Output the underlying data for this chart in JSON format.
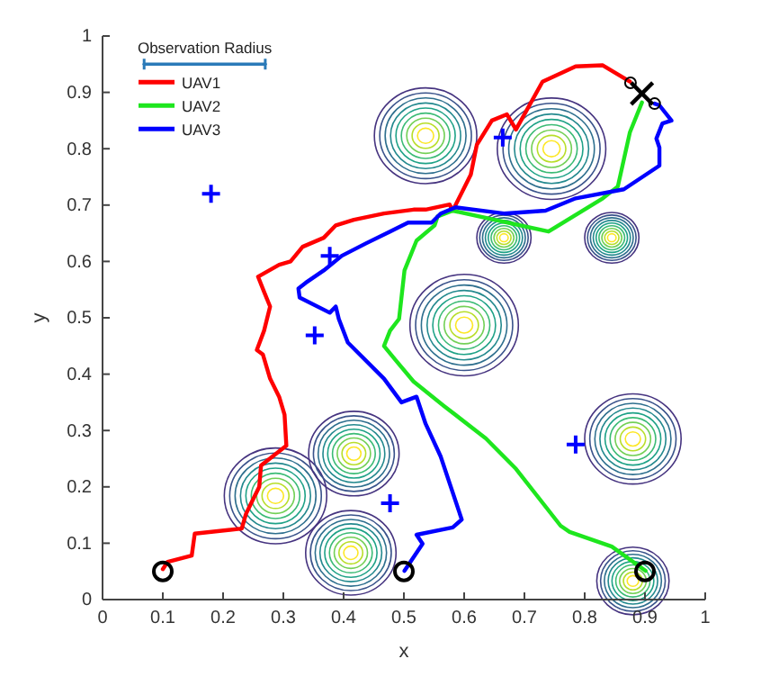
{
  "chart_data": {
    "type": "line",
    "xlabel": "x",
    "ylabel": "y",
    "xlim": [
      0,
      1
    ],
    "ylim": [
      0,
      1
    ],
    "xticks": [
      0,
      0.1,
      0.2,
      0.3,
      0.4,
      0.5,
      0.6,
      0.7,
      0.8,
      0.9,
      1
    ],
    "yticks": [
      0,
      0.1,
      0.2,
      0.3,
      0.4,
      0.5,
      0.6,
      0.7,
      0.8,
      0.9,
      1
    ],
    "grid": false,
    "legend": "top left",
    "line_style": "solid",
    "series": [
      {
        "name": "Observation Radius",
        "type": "line",
        "color": "#2a7ab8",
        "x": [
          0.069,
          0.27
        ],
        "values": [
          0.95,
          0.95
        ]
      },
      {
        "name": "UAV1",
        "color": "#ff0000",
        "x": [
          0.1,
          0.108,
          0.148,
          0.153,
          0.231,
          0.238,
          0.248,
          0.26,
          0.263,
          0.305,
          0.302,
          0.293,
          0.278,
          0.266,
          0.256,
          0.268,
          0.278,
          0.268,
          0.258,
          0.293,
          0.312,
          0.332,
          0.367,
          0.387,
          0.417,
          0.467,
          0.516,
          0.536,
          0.576,
          0.581,
          0.611,
          0.621,
          0.646,
          0.671,
          0.686,
          0.73,
          0.785,
          0.83,
          0.875
        ],
        "values": [
          0.054,
          0.067,
          0.078,
          0.117,
          0.126,
          0.152,
          0.174,
          0.2,
          0.238,
          0.273,
          0.328,
          0.36,
          0.392,
          0.435,
          0.443,
          0.477,
          0.52,
          0.546,
          0.573,
          0.594,
          0.6,
          0.626,
          0.642,
          0.664,
          0.674,
          0.685,
          0.692,
          0.692,
          0.701,
          0.69,
          0.754,
          0.807,
          0.85,
          0.861,
          0.834,
          0.919,
          0.946,
          0.948,
          0.919
        ]
      },
      {
        "name": "UAV2",
        "color": "#1ee61e",
        "x": [
          0.901,
          0.845,
          0.775,
          0.76,
          0.686,
          0.636,
          0.566,
          0.516,
          0.487,
          0.467,
          0.477,
          0.492,
          0.501,
          0.521,
          0.551,
          0.556,
          0.581,
          0.74,
          0.83,
          0.855,
          0.875,
          0.895
        ],
        "values": [
          0.051,
          0.094,
          0.12,
          0.131,
          0.232,
          0.286,
          0.344,
          0.387,
          0.424,
          0.45,
          0.477,
          0.498,
          0.584,
          0.637,
          0.664,
          0.68,
          0.69,
          0.653,
          0.712,
          0.733,
          0.829,
          0.882
        ]
      },
      {
        "name": "UAV3",
        "color": "#0000ff",
        "x": [
          0.501,
          0.531,
          0.521,
          0.581,
          0.596,
          0.561,
          0.536,
          0.521,
          0.496,
          0.467,
          0.407,
          0.392,
          0.387,
          0.377,
          0.327,
          0.325,
          0.337,
          0.367,
          0.397,
          0.437,
          0.477,
          0.507,
          0.546,
          0.561,
          0.586,
          0.666,
          0.735,
          0.785,
          0.865,
          0.924,
          0.924,
          0.919,
          0.929,
          0.944,
          0.924,
          0.916
        ],
        "values": [
          0.051,
          0.099,
          0.115,
          0.128,
          0.142,
          0.254,
          0.312,
          0.36,
          0.35,
          0.392,
          0.456,
          0.498,
          0.52,
          0.509,
          0.536,
          0.552,
          0.562,
          0.584,
          0.61,
          0.632,
          0.653,
          0.669,
          0.669,
          0.685,
          0.696,
          0.685,
          0.69,
          0.712,
          0.728,
          0.77,
          0.802,
          0.818,
          0.845,
          0.85,
          0.877,
          0.88
        ]
      },
      {
        "type": "scatter",
        "marker": "cross",
        "color": "#0000ff",
        "x": [
          0.18,
          0.377,
          0.352,
          0.477,
          0.785,
          0.664
        ],
        "values": [
          0.72,
          0.61,
          0.469,
          0.171,
          0.275,
          0.82
        ]
      },
      {
        "type": "scatter",
        "marker": "circle",
        "color": "#000000",
        "x": [
          0.1,
          0.5,
          0.9
        ],
        "values": [
          0.05,
          0.05,
          0.05
        ]
      },
      {
        "type": "scatter",
        "marker": "circle",
        "color": "#000000",
        "x": [
          0.876,
          0.916
        ],
        "values": [
          0.917,
          0.88
        ]
      },
      {
        "type": "scatter",
        "marker": "x",
        "color": "#000000",
        "x": [
          0.895
        ],
        "values": [
          0.898
        ]
      }
    ]
  }
}
